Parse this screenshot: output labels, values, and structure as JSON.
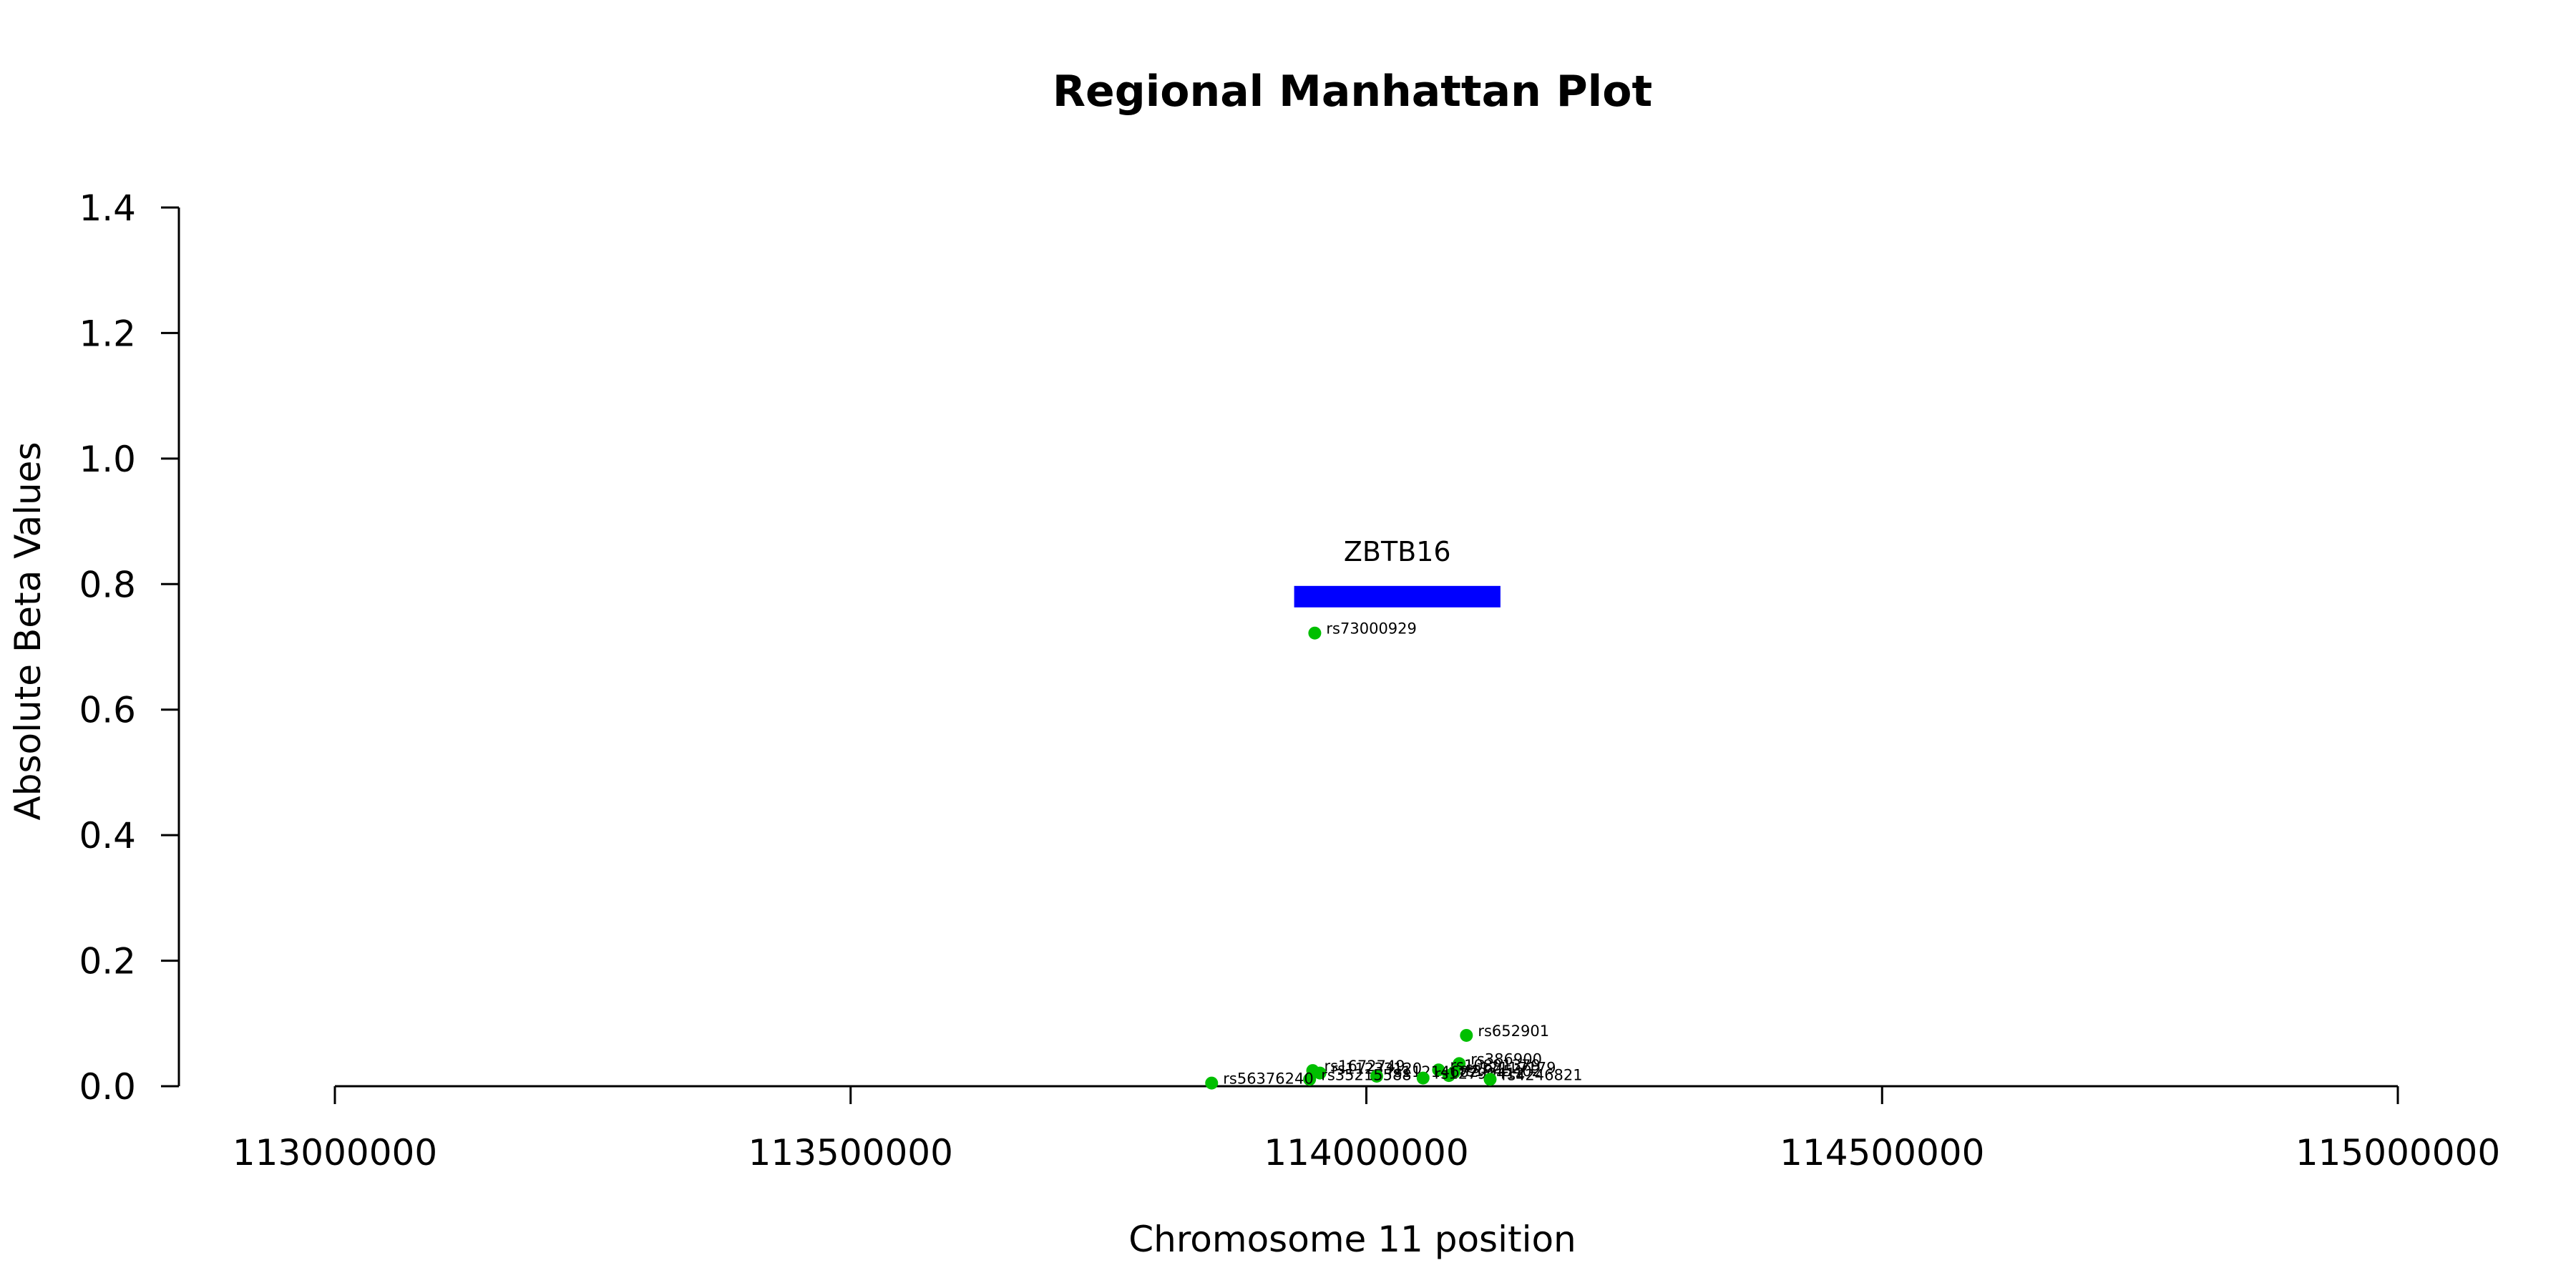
{
  "chart_data": {
    "type": "scatter",
    "title": "Regional Manhattan Plot",
    "xlabel": "Chromosome 11 position",
    "ylabel": "Absolute Beta Values",
    "xlim": [
      113000000,
      115000000
    ],
    "ylim": [
      0,
      1.4
    ],
    "x_ticks": [
      113000000,
      113500000,
      114000000,
      114500000,
      115000000
    ],
    "x_tick_labels": [
      "113000000",
      "113500000",
      "114000000",
      "114500000",
      "115000000"
    ],
    "y_ticks": [
      0.0,
      0.2,
      0.4,
      0.6,
      0.8,
      1.0,
      1.2,
      1.4
    ],
    "y_tick_labels": [
      "0.0",
      "0.2",
      "0.4",
      "0.6",
      "0.8",
      "1.0",
      "1.2",
      "1.4"
    ],
    "point_color": "#00bf00",
    "gene_color": "#0000ff",
    "grid": false,
    "genes": [
      {
        "name": "ZBTB16",
        "start": 113930000,
        "end": 114130000,
        "y": 0.78
      }
    ],
    "points": [
      {
        "label": "rs73000929",
        "x": 113950000,
        "y": 0.722
      },
      {
        "label": "rs652901",
        "x": 114097000,
        "y": 0.081
      },
      {
        "label": "rs386900",
        "x": 114090000,
        "y": 0.036
      },
      {
        "label": "rs1672749",
        "x": 113948000,
        "y": 0.025
      },
      {
        "label": "rs11233120",
        "x": 113955000,
        "y": 0.021
      },
      {
        "label": "rs10891379",
        "x": 114070000,
        "y": 0.026
      },
      {
        "label": "rs17117179",
        "x": 114085000,
        "y": 0.022
      },
      {
        "label": "rs1945402",
        "x": 114080000,
        "y": 0.017
      },
      {
        "label": "rs11214682",
        "x": 114010000,
        "y": 0.016
      },
      {
        "label": "rs12790412",
        "x": 114055000,
        "y": 0.013
      },
      {
        "label": "rs35215588",
        "x": 113945000,
        "y": 0.011
      },
      {
        "label": "rs56376240",
        "x": 113850000,
        "y": 0.005
      },
      {
        "label": "rs4246821",
        "x": 114120000,
        "y": 0.011
      }
    ]
  }
}
